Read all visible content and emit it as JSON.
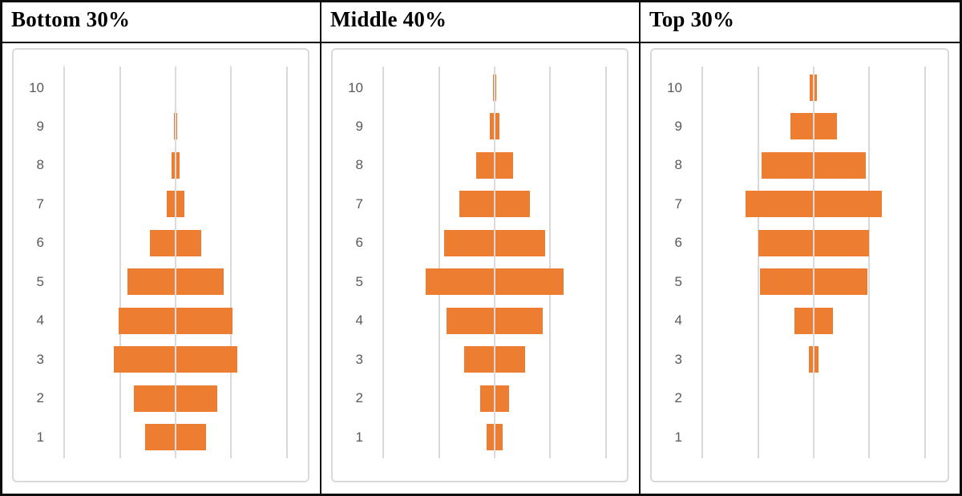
{
  "colors": {
    "bar_fill": "#ED7D31",
    "gridline": "#D9D9D9",
    "center_axis": "#DBDBDB",
    "tick_label": "#595959",
    "table_border": "#0D0D0D",
    "background": "#FFFFFF"
  },
  "panels": [
    {
      "title": "Bottom 30%"
    },
    {
      "title": "Middle 40%"
    },
    {
      "title": "Top 30%"
    }
  ],
  "chart_data": [
    {
      "type": "bar",
      "variant": "horizontal-diverging-centered",
      "title": "Bottom 30%",
      "categories": [
        1,
        2,
        3,
        4,
        5,
        6,
        7,
        8,
        9,
        10
      ],
      "category_order_top_to_bottom": [
        10,
        9,
        8,
        7,
        6,
        5,
        4,
        3,
        2,
        1
      ],
      "values_half_width_gridline_units": [
        0.55,
        0.75,
        1.11,
        1.02,
        0.86,
        0.46,
        0.16,
        0.07,
        0.025,
        0.01
      ],
      "values_pct_estimated": [
        11.0,
        15.0,
        22.2,
        20.4,
        17.2,
        9.2,
        3.2,
        1.4,
        0.5,
        0.2
      ],
      "xlabel": "",
      "ylabel": "",
      "x_gridlines_units": [
        -2,
        -1,
        0,
        1,
        2
      ],
      "x_tick_labels_visible": false,
      "grid": true,
      "legend": false,
      "bar_color": "#ED7D31"
    },
    {
      "type": "bar",
      "variant": "horizontal-diverging-centered",
      "title": "Middle 40%",
      "categories": [
        1,
        2,
        3,
        4,
        5,
        6,
        7,
        8,
        9,
        10
      ],
      "category_order_top_to_bottom": [
        10,
        9,
        8,
        7,
        6,
        5,
        4,
        3,
        2,
        1
      ],
      "values_half_width_gridline_units": [
        0.15,
        0.26,
        0.55,
        0.86,
        1.24,
        0.91,
        0.63,
        0.33,
        0.08,
        0.03
      ],
      "values_pct_estimated": [
        3.0,
        5.2,
        11.0,
        17.2,
        24.8,
        18.2,
        12.6,
        6.6,
        1.6,
        0.6
      ],
      "xlabel": "",
      "ylabel": "",
      "x_gridlines_units": [
        -2,
        -1,
        0,
        1,
        2
      ],
      "x_tick_labels_visible": false,
      "grid": true,
      "legend": false,
      "bar_color": "#ED7D31"
    },
    {
      "type": "bar",
      "variant": "horizontal-diverging-centered",
      "title": "Top 30%",
      "categories": [
        1,
        2,
        3,
        4,
        5,
        6,
        7,
        8,
        9,
        10
      ],
      "category_order_top_to_bottom": [
        10,
        9,
        8,
        7,
        6,
        5,
        4,
        3,
        2,
        1
      ],
      "values_half_width_gridline_units": [
        0.005,
        0.02,
        0.08,
        0.35,
        0.96,
        1.0,
        1.22,
        0.94,
        0.42,
        0.065
      ],
      "values_pct_estimated": [
        0.1,
        0.4,
        1.6,
        7.0,
        19.2,
        20.0,
        24.4,
        18.8,
        8.4,
        1.3
      ],
      "xlabel": "",
      "ylabel": "",
      "x_gridlines_units": [
        -2,
        -1,
        0,
        1,
        2
      ],
      "x_tick_labels_visible": false,
      "grid": true,
      "legend": false,
      "bar_color": "#ED7D31"
    }
  ]
}
